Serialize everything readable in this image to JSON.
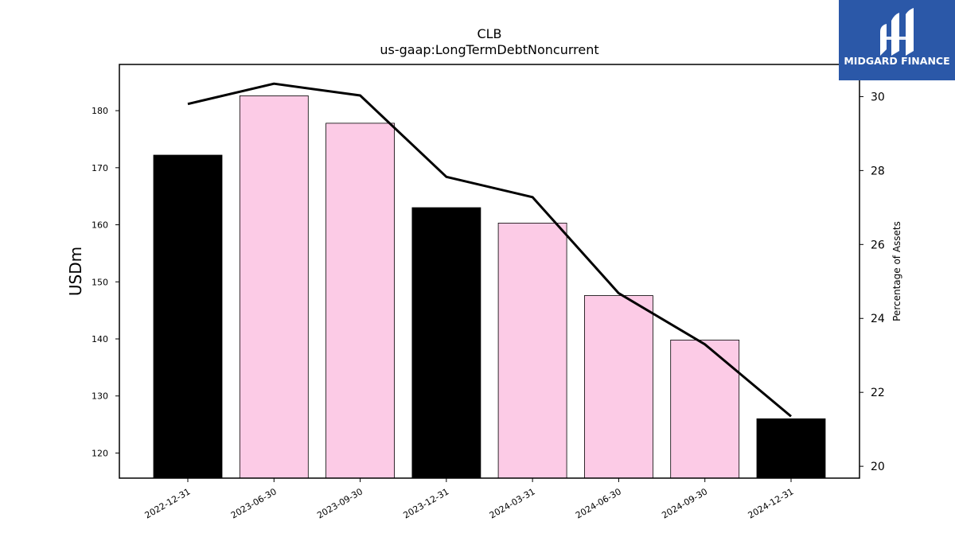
{
  "chart_data": {
    "type": "bar",
    "title": "CLB",
    "subtitle": "us-gaap:LongTermDebtNoncurrent",
    "ylabel": "USDm",
    "y2label": "Percentage of Assets",
    "categories": [
      "2022-12-31",
      "2023-06-30",
      "2023-09-30",
      "2023-12-31",
      "2024-03-31",
      "2024-06-30",
      "2024-09-30",
      "2024-12-31"
    ],
    "series": [
      {
        "type": "bar",
        "values": [
          172.2,
          182.6,
          177.8,
          163.0,
          160.3,
          147.6,
          139.8,
          126.0
        ],
        "colors": [
          "#000000",
          "#fccbe6",
          "#fccbe6",
          "#000000",
          "#fccbe6",
          "#fccbe6",
          "#fccbe6",
          "#000000"
        ],
        "axis": "left"
      },
      {
        "type": "line",
        "values": [
          29.8,
          30.35,
          30.03,
          27.83,
          27.28,
          24.68,
          23.3,
          21.35
        ],
        "color": "#000000",
        "axis": "right"
      }
    ],
    "ylim": [
      115.6,
      188.1
    ],
    "yticks": [
      120,
      130,
      140,
      150,
      160,
      170,
      180
    ],
    "y2lim": [
      19.68,
      30.87
    ],
    "y2ticks": [
      20,
      22,
      24,
      26,
      28,
      30
    ],
    "grid": false
  },
  "logo": {
    "text": "MIDGARD FINANCE",
    "bg_color": "#2b58a8"
  }
}
